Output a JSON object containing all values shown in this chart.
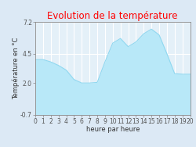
{
  "title": "Evolution de la température",
  "xlabel": "heure par heure",
  "ylabel": "Température en °C",
  "ylim": [
    -0.7,
    7.2
  ],
  "yticks": [
    -0.7,
    2.0,
    4.5,
    7.2
  ],
  "ytick_labels": [
    "-0.7",
    "2.0",
    "4.5",
    "7.2"
  ],
  "xtick_labels": [
    "0",
    "1",
    "2",
    "3",
    "4",
    "5",
    "6",
    "7",
    "8",
    "9",
    "10",
    "11",
    "12",
    "13",
    "14",
    "15",
    "16",
    "17",
    "18",
    "19",
    "20"
  ],
  "hours": [
    0,
    1,
    2,
    3,
    4,
    5,
    6,
    7,
    8,
    9,
    10,
    11,
    12,
    13,
    14,
    15,
    16,
    17,
    18,
    19,
    20
  ],
  "temperatures": [
    4.0,
    4.0,
    3.8,
    3.5,
    3.1,
    2.3,
    2.0,
    2.0,
    2.05,
    3.8,
    5.4,
    5.8,
    5.1,
    5.5,
    6.2,
    6.6,
    6.1,
    4.5,
    2.8,
    2.75,
    2.75
  ],
  "line_color": "#90d8f0",
  "fill_color": "#b8e8f8",
  "fill_alpha": 1.0,
  "bg_color": "#dce9f5",
  "plot_bg_color": "#e4f0f8",
  "title_color": "#ff0000",
  "axis_color": "#888888",
  "grid_color": "#ffffff",
  "title_fontsize": 8.5,
  "label_fontsize": 6.0,
  "tick_fontsize": 5.5
}
